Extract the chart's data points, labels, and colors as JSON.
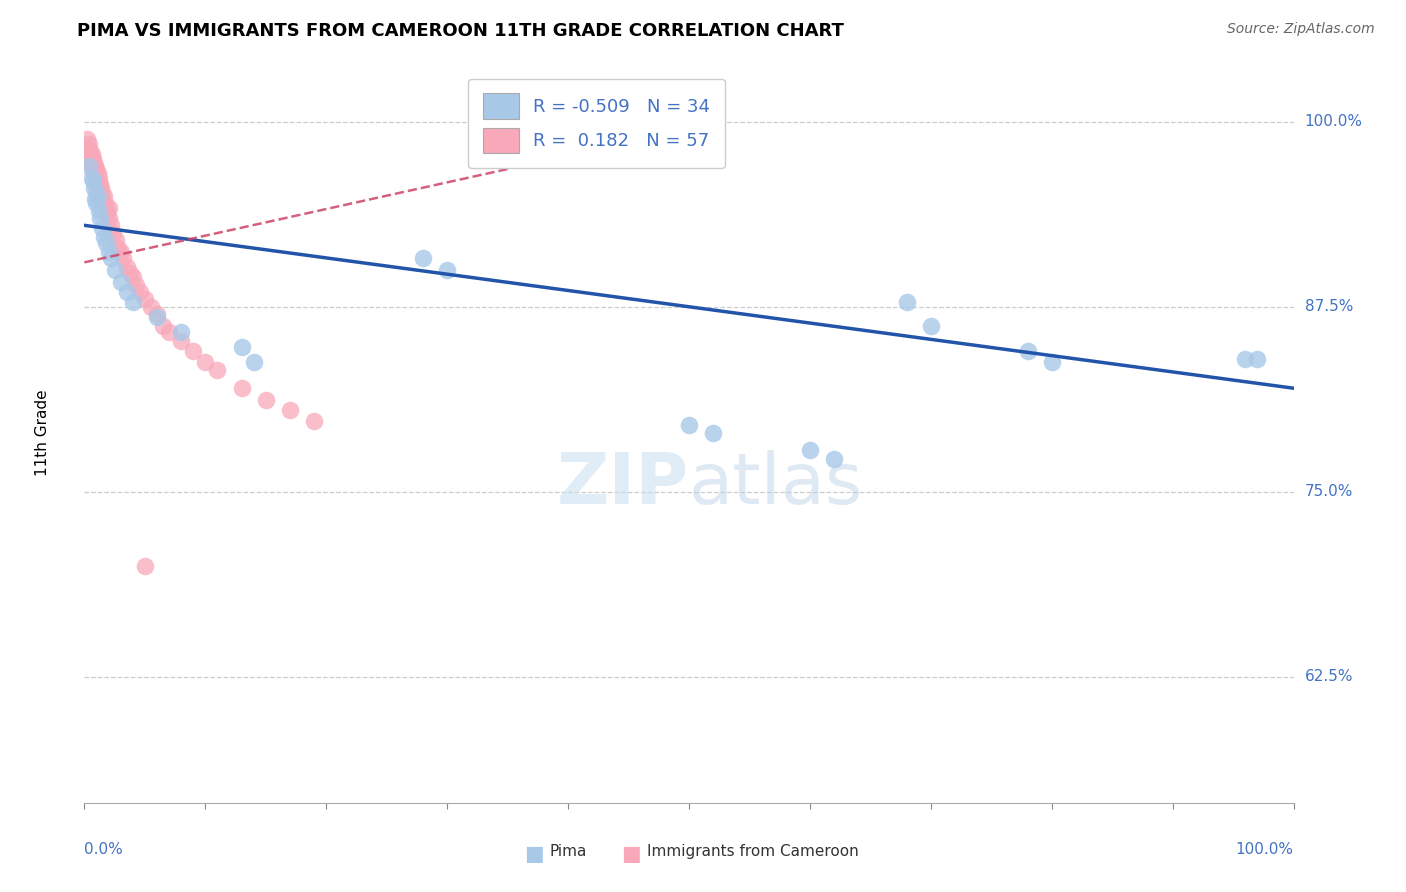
{
  "title": "PIMA VS IMMIGRANTS FROM CAMEROON 11TH GRADE CORRELATION CHART",
  "source": "Source: ZipAtlas.com",
  "ylabel": "11th Grade",
  "xmin": 0.0,
  "xmax": 1.0,
  "ymin": 0.54,
  "ymax": 1.04,
  "blue_R": -0.509,
  "blue_N": 34,
  "pink_R": 0.182,
  "pink_N": 57,
  "blue_color": "#a8c8e8",
  "pink_color": "#f8a8b8",
  "blue_line_color": "#2255aa",
  "pink_line_color": "#cc4466",
  "legend_label_blue": "Pima",
  "legend_label_pink": "Immigrants from Cameroon",
  "ytick_vals": [
    0.625,
    0.75,
    0.875,
    1.0
  ],
  "ytick_labels": [
    "62.5%",
    "75.0%",
    "87.5%",
    "100.0%"
  ],
  "blue_dots_x": [
    0.004,
    0.006,
    0.007,
    0.008,
    0.009,
    0.01,
    0.011,
    0.012,
    0.013,
    0.015,
    0.016,
    0.018,
    0.02,
    0.022,
    0.025,
    0.03,
    0.035,
    0.04,
    0.06,
    0.08,
    0.13,
    0.14,
    0.28,
    0.3,
    0.5,
    0.52,
    0.6,
    0.62,
    0.68,
    0.7,
    0.78,
    0.8,
    0.96,
    0.97
  ],
  "blue_dots_y": [
    0.97,
    0.962,
    0.96,
    0.955,
    0.948,
    0.945,
    0.95,
    0.94,
    0.935,
    0.928,
    0.922,
    0.918,
    0.912,
    0.908,
    0.9,
    0.892,
    0.885,
    0.878,
    0.868,
    0.858,
    0.848,
    0.838,
    0.908,
    0.9,
    0.795,
    0.79,
    0.778,
    0.772,
    0.878,
    0.862,
    0.845,
    0.838,
    0.84,
    0.84
  ],
  "pink_dots_x": [
    0.002,
    0.003,
    0.004,
    0.004,
    0.005,
    0.005,
    0.006,
    0.006,
    0.007,
    0.007,
    0.008,
    0.008,
    0.009,
    0.009,
    0.01,
    0.01,
    0.01,
    0.011,
    0.011,
    0.012,
    0.012,
    0.013,
    0.013,
    0.014,
    0.015,
    0.015,
    0.016,
    0.017,
    0.018,
    0.019,
    0.02,
    0.02,
    0.022,
    0.024,
    0.026,
    0.028,
    0.03,
    0.032,
    0.035,
    0.038,
    0.04,
    0.043,
    0.046,
    0.05,
    0.055,
    0.06,
    0.065,
    0.07,
    0.08,
    0.09,
    0.1,
    0.11,
    0.13,
    0.15,
    0.17,
    0.19,
    0.05
  ],
  "pink_dots_y": [
    0.988,
    0.982,
    0.985,
    0.978,
    0.98,
    0.972,
    0.978,
    0.97,
    0.975,
    0.968,
    0.972,
    0.965,
    0.97,
    0.963,
    0.968,
    0.96,
    0.952,
    0.965,
    0.958,
    0.962,
    0.955,
    0.958,
    0.95,
    0.955,
    0.952,
    0.945,
    0.95,
    0.945,
    0.942,
    0.938,
    0.942,
    0.935,
    0.93,
    0.925,
    0.92,
    0.915,
    0.912,
    0.908,
    0.902,
    0.898,
    0.895,
    0.89,
    0.885,
    0.88,
    0.875,
    0.87,
    0.862,
    0.858,
    0.852,
    0.845,
    0.838,
    0.832,
    0.82,
    0.812,
    0.805,
    0.798,
    0.7
  ],
  "blue_line_x": [
    0.0,
    1.0
  ],
  "blue_line_y": [
    0.93,
    0.82
  ],
  "pink_line_x": [
    0.0,
    0.35
  ],
  "pink_line_y": [
    0.905,
    0.968
  ]
}
